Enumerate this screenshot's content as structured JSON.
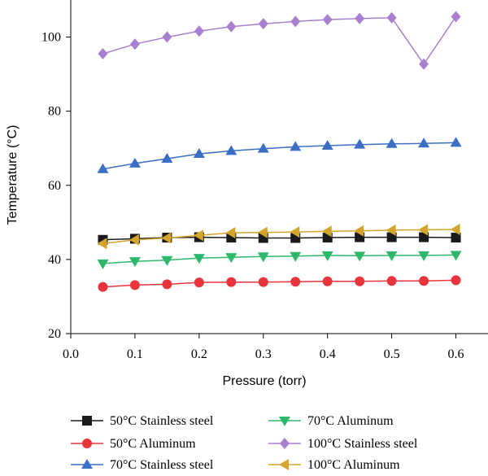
{
  "chart_data": {
    "type": "line",
    "xlabel": "Pressure (torr)",
    "ylabel": "Temperature (°C)",
    "xlim": [
      0.0,
      0.65
    ],
    "ylim": [
      20,
      110
    ],
    "xticks": [
      "0.0",
      "0.1",
      "0.2",
      "0.3",
      "0.4",
      "0.5",
      "0.6"
    ],
    "yticks": [
      "20",
      "40",
      "60",
      "80",
      "100"
    ],
    "x": [
      0.05,
      0.1,
      0.15,
      0.2,
      0.25,
      0.3,
      0.35,
      0.4,
      0.45,
      0.5,
      0.55,
      0.6
    ],
    "grid": false,
    "legend_position": "bottom",
    "series": [
      {
        "name": "50°C Stainless steel",
        "color": "#1a1a1a",
        "marker": "square",
        "values": [
          45.3,
          45.6,
          45.9,
          46.0,
          45.9,
          45.8,
          45.8,
          45.9,
          46.0,
          46.0,
          46.0,
          45.9
        ]
      },
      {
        "name": "50°C Aluminum",
        "color": "#e8343a",
        "marker": "circle",
        "values": [
          32.6,
          33.1,
          33.3,
          33.8,
          33.9,
          33.9,
          34.0,
          34.1,
          34.1,
          34.2,
          34.2,
          34.4
        ]
      },
      {
        "name": "70°C Stainless steel",
        "color": "#3a6fc4",
        "marker": "triangle-up",
        "values": [
          64.4,
          65.9,
          67.2,
          68.5,
          69.3,
          69.9,
          70.4,
          70.7,
          71.0,
          71.2,
          71.3,
          71.5
        ]
      },
      {
        "name": "70°C Aluminum",
        "color": "#2eb86b",
        "marker": "triangle-down",
        "values": [
          38.9,
          39.5,
          39.8,
          40.4,
          40.6,
          40.8,
          40.9,
          41.1,
          41.0,
          41.1,
          41.1,
          41.2
        ]
      },
      {
        "name": "100°C Stainless steel",
        "color": "#a97fd0",
        "marker": "diamond",
        "values": [
          95.5,
          98.1,
          100.0,
          101.6,
          102.8,
          103.6,
          104.2,
          104.7,
          105.0,
          105.2,
          92.7,
          105.5
        ]
      },
      {
        "name": "100°C Aluminum",
        "color": "#d4a52c",
        "marker": "triangle-left",
        "values": [
          44.3,
          45.3,
          45.8,
          46.5,
          47.2,
          47.3,
          47.4,
          47.6,
          47.7,
          47.9,
          48.0,
          48.1
        ]
      }
    ]
  }
}
